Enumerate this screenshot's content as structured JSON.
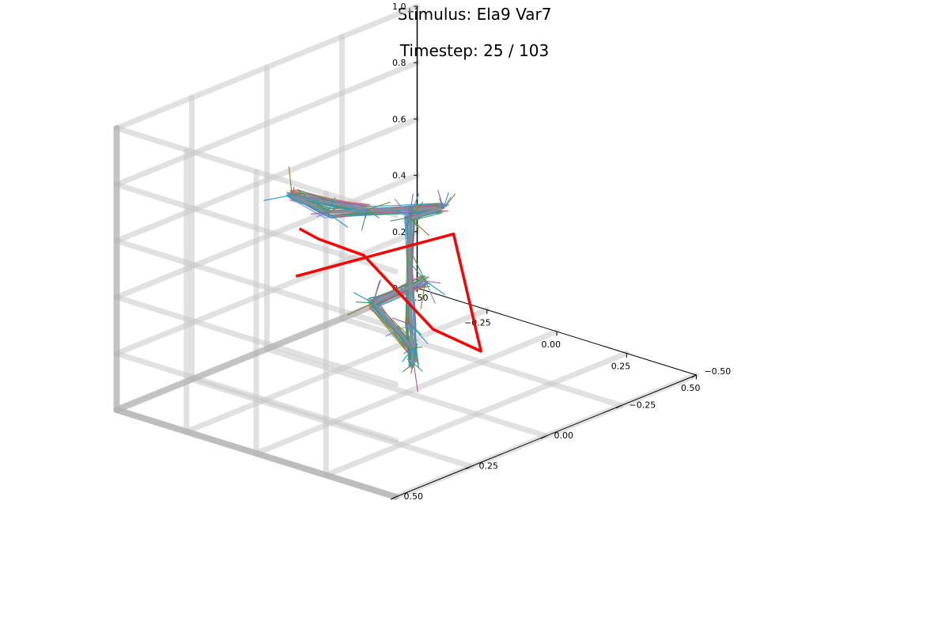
{
  "title": "Stimulus: Ela9 Var7",
  "subtitle": "Timestep: 25 / 103",
  "chart_data": {
    "type": "line3d",
    "title": "Stimulus: Ela9 Var7",
    "subtitle": "Timestep: 25 / 103",
    "timestep": 25,
    "timestep_total": 103,
    "x_ticks": [
      "−0.50",
      "−0.25",
      "0.00",
      "0.25",
      "0.50"
    ],
    "y_ticks": [
      "−0.50",
      "−0.25",
      "0.00",
      "0.25",
      "0.50"
    ],
    "z_ticks": [
      "0.0",
      "0.2",
      "0.4",
      "0.6",
      "0.8",
      "1.0"
    ],
    "xlim": [
      -0.5,
      0.5
    ],
    "ylim": [
      -0.5,
      0.5
    ],
    "zlim": [
      0.0,
      1.0
    ],
    "grid": true,
    "legend": "none",
    "target_color": "#ff0000",
    "series_colors": [
      "#1f9bcf",
      "#3a9b5c",
      "#c06fa8",
      "#8a7f2a",
      "#6f8fd6",
      "#e07050",
      "#2aa198",
      "#9b59b6"
    ],
    "target_path": [
      {
        "x": 0.11,
        "y": 0.47,
        "z": 0.65
      },
      {
        "x": 0.19,
        "y": 0.02,
        "z": 0.63
      },
      {
        "x": 0.17,
        "y": -0.09,
        "z": 0.16
      },
      {
        "x": 0.02,
        "y": -0.07,
        "z": 0.2
      },
      {
        "x": -0.11,
        "y": 0.04,
        "z": 0.47
      },
      {
        "x": 0.04,
        "y": 0.33,
        "z": 0.7
      },
      {
        "x": 0.09,
        "y": 0.44,
        "z": 0.8
      }
    ],
    "predicted_chains": [
      [
        {
          "x": -0.15,
          "y": -0.15,
          "z": 0.51
        },
        {
          "x": -0.05,
          "y": -0.06,
          "z": 0.2
        },
        {
          "x": -0.06,
          "y": -0.08,
          "z": 0.05
        },
        {
          "x": -0.01,
          "y": -0.03,
          "z": 0.14
        },
        {
          "x": 0.02,
          "y": 0.13,
          "z": 0.38
        },
        {
          "x": 0.1,
          "y": 0.03,
          "z": 0.44
        }
      ],
      [
        {
          "x": -0.15,
          "y": -0.15,
          "z": 0.51
        },
        {
          "x": 0.1,
          "y": -0.03,
          "z": 0.67
        },
        {
          "x": 0.04,
          "y": 0.3,
          "z": 0.78
        },
        {
          "x": 0.02,
          "y": 0.4,
          "z": 0.88
        },
        {
          "x": 0.02,
          "y": 0.15,
          "z": 0.72
        }
      ]
    ]
  }
}
